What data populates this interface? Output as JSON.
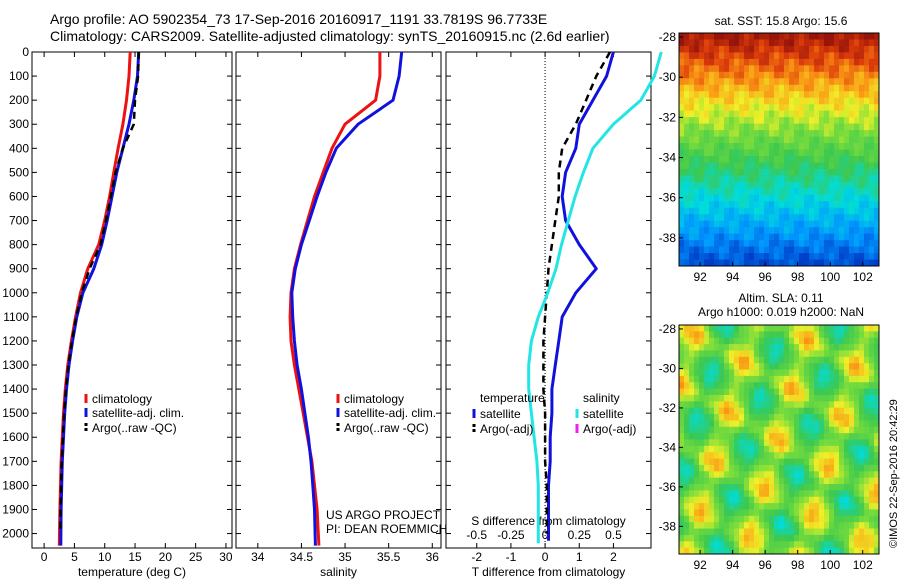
{
  "header": {
    "line1": "Argo profile: AO 5902354_73 17-Sep-2016 20160917_1191 33.7819S 96.7733E",
    "line2": "Climatology: CARS2009. Satellite-adjusted climatology: synTS_20160915.nc (2.6d earlier)"
  },
  "credit": "©IMOS 22-Sep-2016 20:42:29",
  "colors": {
    "climatology": "#ee1111",
    "satellite": "#1111dd",
    "argo": "#000000",
    "sat_salinity": "#22e5e5",
    "argo_adj_salinity": "#ee22ee"
  },
  "depth_axis": {
    "ticks": [
      0,
      100,
      200,
      300,
      400,
      500,
      600,
      700,
      800,
      900,
      1000,
      1100,
      1200,
      1300,
      1400,
      1500,
      1600,
      1700,
      1800,
      1900,
      2000
    ],
    "range": [
      0,
      2060
    ]
  },
  "chart_data": [
    {
      "type": "line",
      "id": "temperature",
      "xlabel": "temperature (deg C)",
      "xlim": [
        -2,
        31
      ],
      "xticks": [
        0,
        5,
        10,
        15,
        20,
        25,
        30
      ],
      "legend": [
        "climatology",
        "satellite-adj. clim.",
        "Argo(..raw -QC)"
      ],
      "series": [
        {
          "name": "climatology",
          "color": "#ee1111",
          "style": "solid",
          "x": [
            14.2,
            14.0,
            13.6,
            13.0,
            12.2,
            11.5,
            10.8,
            10.0,
            9.0,
            7.2,
            6.0,
            5.2,
            4.5,
            3.9,
            3.5,
            3.2,
            3.0,
            2.8,
            2.7,
            2.6,
            2.5
          ],
          "y": [
            0,
            100,
            200,
            300,
            400,
            500,
            600,
            700,
            800,
            900,
            1000,
            1100,
            1200,
            1300,
            1400,
            1500,
            1600,
            1700,
            1800,
            1900,
            2050
          ]
        },
        {
          "name": "satellite-adj. clim.",
          "color": "#1111dd",
          "style": "solid",
          "x": [
            15.6,
            15.4,
            14.8,
            14.0,
            13.0,
            12.0,
            11.2,
            10.4,
            9.5,
            8.2,
            6.4,
            5.4,
            4.7,
            4.1,
            3.7,
            3.4,
            3.2,
            3.0,
            2.9,
            2.8,
            2.75
          ],
          "y": [
            0,
            100,
            200,
            300,
            400,
            500,
            600,
            700,
            800,
            900,
            1000,
            1100,
            1200,
            1300,
            1400,
            1500,
            1600,
            1700,
            1800,
            1900,
            2050
          ]
        },
        {
          "name": "Argo(..raw -QC)",
          "color": "#000000",
          "style": "dashed",
          "x": [
            15.6,
            15.5,
            15.0,
            14.8,
            13.0,
            11.8,
            11.0,
            10.2,
            9.3,
            7.5,
            6.2,
            5.3,
            4.6,
            4.0,
            3.6,
            3.3,
            3.1,
            2.9,
            2.8,
            2.7,
            2.65
          ],
          "y": [
            0,
            100,
            200,
            300,
            400,
            500,
            600,
            700,
            800,
            900,
            1000,
            1100,
            1200,
            1300,
            1400,
            1500,
            1600,
            1700,
            1800,
            1900,
            2000
          ]
        }
      ]
    },
    {
      "type": "line",
      "id": "salinity",
      "xlabel": "salinity",
      "xlim": [
        33.75,
        36.1
      ],
      "xticks": [
        34,
        34.5,
        35,
        35.5,
        36
      ],
      "xtick_labels": [
        "34",
        "34.5",
        "35",
        "35.5",
        "36"
      ],
      "legend": [
        "climatology",
        "satellite-adj. clim.",
        "Argo(..raw -QC)"
      ],
      "annotation": [
        "US ARGO PROJECT",
        "PI: DEAN ROEMMICH"
      ],
      "series": [
        {
          "name": "climatology",
          "color": "#ee1111",
          "style": "solid",
          "x": [
            35.4,
            35.4,
            35.35,
            35.0,
            34.85,
            34.75,
            34.65,
            34.57,
            34.49,
            34.42,
            34.38,
            34.37,
            34.38,
            34.42,
            34.47,
            34.52,
            34.57,
            34.62,
            34.65,
            34.68,
            34.7
          ],
          "y": [
            0,
            100,
            200,
            300,
            400,
            500,
            600,
            700,
            800,
            900,
            1000,
            1100,
            1200,
            1300,
            1400,
            1500,
            1600,
            1700,
            1800,
            1900,
            2050
          ]
        },
        {
          "name": "satellite-adj. clim.",
          "color": "#1111dd",
          "style": "solid",
          "x": [
            35.65,
            35.62,
            35.55,
            35.15,
            34.9,
            34.78,
            34.68,
            34.59,
            34.5,
            34.43,
            34.39,
            34.4,
            34.42,
            34.45,
            34.5,
            34.54,
            34.58,
            34.61,
            34.63,
            34.65,
            34.66
          ],
          "y": [
            0,
            100,
            200,
            300,
            400,
            500,
            600,
            700,
            800,
            900,
            1000,
            1100,
            1200,
            1300,
            1400,
            1500,
            1600,
            1700,
            1800,
            1900,
            2050
          ]
        },
        {
          "name": "Argo(..raw -QC)",
          "color": "#000000",
          "style": "dashed",
          "x": [],
          "y": []
        }
      ]
    },
    {
      "type": "line",
      "id": "difference",
      "xlabel": "T difference from climatology",
      "xlabel_top": "S difference from climatology",
      "xlim": [
        -2.9,
        3.1
      ],
      "xticks": [
        -2,
        -1,
        0,
        1,
        2
      ],
      "xtick_labels": [
        "-2",
        "-1",
        "0",
        "1",
        "2"
      ],
      "top_xticks": [
        -0.5,
        -0.25,
        0,
        0.25,
        0.5
      ],
      "top_xtick_labels": [
        "-0.5",
        "-0.25",
        "0",
        "0.25",
        "0.5"
      ],
      "legend_titles": [
        "temperature",
        "salinity"
      ],
      "legend": [
        "satellite",
        "Argo(-adj)",
        "satellite",
        "Argo(-adj)"
      ],
      "series": [
        {
          "name": "T satellite",
          "color": "#1111dd",
          "style": "solid",
          "x": [
            2.0,
            1.8,
            1.4,
            1.0,
            0.9,
            0.6,
            0.5,
            0.6,
            1.0,
            1.5,
            0.9,
            0.5,
            0.4,
            0.3,
            0.2,
            0.2,
            0.15,
            0.15,
            0.1,
            0.1,
            0.1
          ],
          "y": [
            0,
            100,
            200,
            300,
            400,
            500,
            600,
            700,
            800,
            900,
            1000,
            1100,
            1200,
            1300,
            1400,
            1500,
            1600,
            1700,
            1800,
            1900,
            2030
          ]
        },
        {
          "name": "T Argo(-adj)",
          "color": "#000000",
          "style": "dashed",
          "x": [
            1.9,
            1.5,
            1.2,
            0.9,
            0.5,
            0.4,
            0.4,
            0.3,
            0.2,
            0.1,
            0.05,
            0.0,
            -0.05,
            -0.05,
            -0.05,
            0.0,
            0.0,
            0.0,
            0.05,
            0.05,
            0.05
          ],
          "y": [
            0,
            100,
            200,
            300,
            400,
            500,
            600,
            700,
            800,
            900,
            1000,
            1100,
            1200,
            1300,
            1400,
            1500,
            1600,
            1700,
            1800,
            1900,
            2000
          ]
        },
        {
          "name": "S satellite",
          "color": "#22e5e5",
          "style": "solid",
          "x": [
            0.85,
            0.8,
            0.7,
            0.5,
            0.35,
            0.28,
            0.22,
            0.17,
            0.12,
            0.08,
            0.02,
            -0.05,
            -0.1,
            -0.12,
            -0.12,
            -0.1,
            -0.08,
            -0.06,
            -0.05,
            -0.05,
            -0.05
          ],
          "y": [
            0,
            100,
            200,
            300,
            400,
            500,
            600,
            700,
            800,
            900,
            1000,
            1100,
            1200,
            1300,
            1400,
            1500,
            1600,
            1700,
            1800,
            1900,
            2040
          ]
        },
        {
          "name": "S Argo(-adj)",
          "color": "#ee22ee",
          "style": "dashed",
          "x": [],
          "y": []
        }
      ]
    },
    {
      "type": "heatmap",
      "id": "sst",
      "title": "sat. SST: 15.8 Argo: 15.6",
      "xticks": [
        92,
        94,
        96,
        98,
        100,
        102
      ],
      "yticks": [
        -28,
        -30,
        -32,
        -34,
        -36,
        -38
      ],
      "xlim": [
        90.7,
        103.0
      ],
      "ylim": [
        -39.4,
        -27.8
      ]
    },
    {
      "type": "heatmap",
      "id": "sla",
      "title_line1": "Altim. SLA: 0.11",
      "title_line2": "Argo h1000: 0.019 h2000: NaN",
      "xticks": [
        92,
        94,
        96,
        98,
        100,
        102
      ],
      "yticks": [
        -28,
        -30,
        -32,
        -34,
        -36,
        -38
      ],
      "xlim": [
        90.7,
        103.0
      ],
      "ylim": [
        -39.4,
        -27.8
      ]
    }
  ]
}
